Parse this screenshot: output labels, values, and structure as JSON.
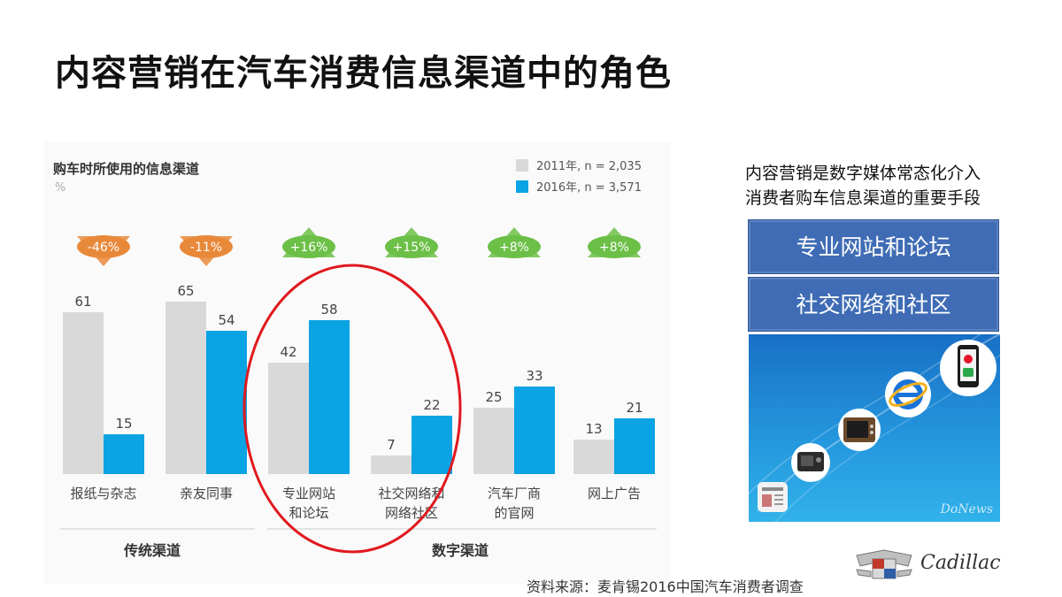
{
  "slide": {
    "title": "内容营销在汽车消费信息渠道中的角色",
    "source": "资料来源：麦肯锡2016中国汽车消费者调查"
  },
  "colors": {
    "series_2011": "#d9d9d9",
    "series_2016": "#0aa3e3",
    "decrease_badge": "#e8893a",
    "increase_badge": "#6cbf47",
    "highlight_ellipse": "#e0191f",
    "box_blue": "#3f6cb5"
  },
  "chart_data": {
    "type": "bar",
    "title": "购车时所使用的信息渠道",
    "unit": "%",
    "categories": [
      "报纸与杂志",
      "亲友同事",
      "专业网站\n和论坛",
      "社交网络和\n网络社区",
      "汽车厂商\n的官网",
      "网上广告"
    ],
    "series": [
      {
        "name": "2011年, n = 2,035",
        "values": [
          61,
          65,
          42,
          7,
          25,
          13
        ]
      },
      {
        "name": "2016年, n = 3,571",
        "values": [
          15,
          54,
          58,
          22,
          33,
          21
        ]
      }
    ],
    "changes": [
      "-46%",
      "-11%",
      "+16%",
      "+15%",
      "+8%",
      "+8%"
    ],
    "groups": [
      {
        "label": "传统渠道",
        "categories": [
          0,
          1
        ]
      },
      {
        "label": "数字渠道",
        "categories": [
          2,
          3,
          4,
          5
        ]
      }
    ],
    "highlighted_categories": [
      2,
      3
    ],
    "ylim": [
      0,
      70
    ],
    "legend_position": "top-right",
    "grid": false
  },
  "right_panel": {
    "caption_line1": "内容营销是数字媒体常态化介入",
    "caption_line2": "消费者购车信息渠道的重要手段",
    "box1": "专业网站和论坛",
    "box2": "社交网络和社区",
    "watermark": "DoNews",
    "media_icons": [
      "newspaper-icon",
      "radio-icon",
      "tv-icon",
      "internet-explorer-icon",
      "smartphone-weibo-icon"
    ]
  },
  "brand": {
    "name": "Cadillac",
    "logo": "cadillac-crest-logo"
  }
}
